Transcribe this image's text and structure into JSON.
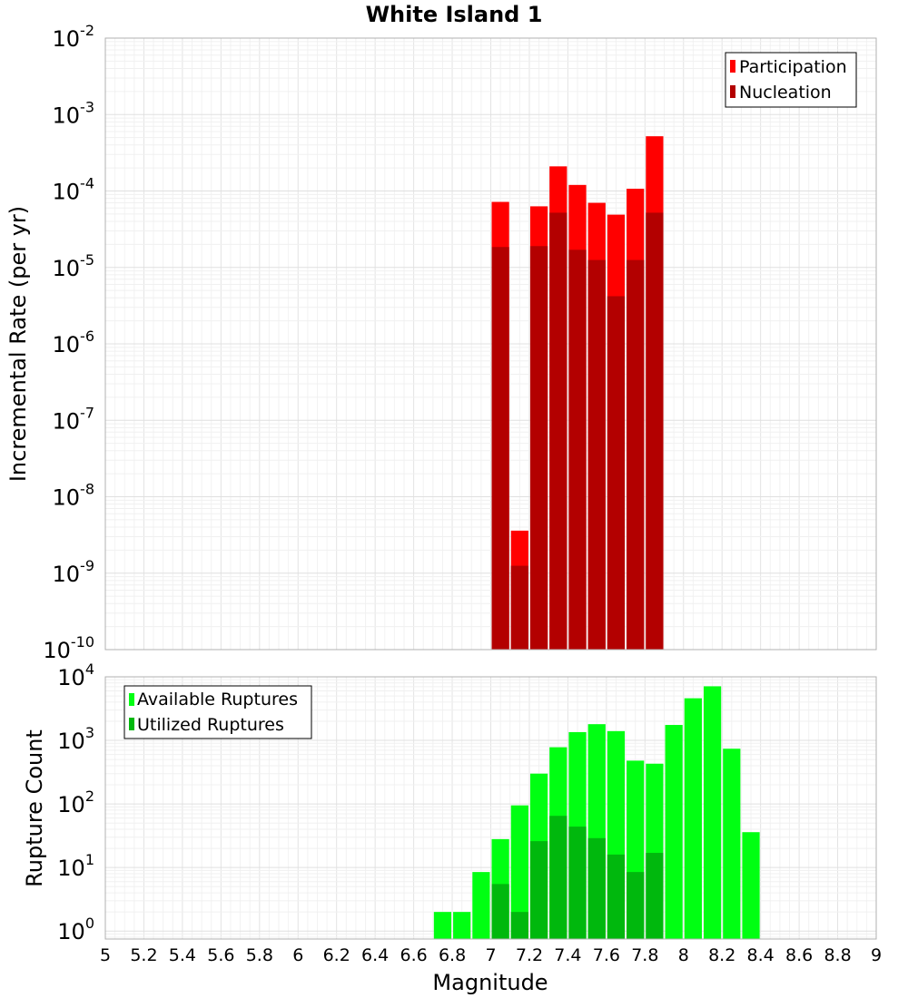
{
  "chart_data": [
    {
      "type": "bar",
      "title": "White Island 1",
      "xlabel": "",
      "ylabel": "Incremental Rate (per yr)",
      "yscale": "log",
      "ylim": [
        1e-10,
        0.01
      ],
      "xlim": [
        5,
        9
      ],
      "grid": true,
      "legend_position": "top-right",
      "x": [
        7.05,
        7.15,
        7.25,
        7.35,
        7.45,
        7.55,
        7.65,
        7.75,
        7.85
      ],
      "series": [
        {
          "name": "Participation",
          "color": "#ff0000",
          "values": [
            7.2e-05,
            3.6e-09,
            6.3e-05,
            0.00021,
            0.00012,
            7e-05,
            4.9e-05,
            0.000107,
            0.00052
          ]
        },
        {
          "name": "Nucleation",
          "color": "#b30000",
          "values": [
            1.85e-05,
            1.25e-09,
            1.9e-05,
            5.2e-05,
            1.7e-05,
            1.25e-05,
            4.2e-06,
            1.25e-05,
            5.2e-05
          ]
        }
      ]
    },
    {
      "type": "bar",
      "title": "",
      "xlabel": "Magnitude",
      "ylabel": "Rupture Count",
      "yscale": "log",
      "ylim": [
        0.75,
        10000
      ],
      "xlim": [
        5,
        9
      ],
      "grid": true,
      "legend_position": "top-left",
      "x": [
        6.75,
        6.85,
        6.95,
        7.05,
        7.15,
        7.25,
        7.35,
        7.45,
        7.55,
        7.65,
        7.75,
        7.85,
        7.95,
        8.05,
        8.15,
        8.25,
        8.35
      ],
      "series": [
        {
          "name": "Available Ruptures",
          "color": "#00ff12",
          "values": [
            2,
            2,
            8.5,
            28,
            95,
            300,
            780,
            1350,
            1800,
            1400,
            480,
            430,
            1750,
            4600,
            7100,
            740,
            36
          ]
        },
        {
          "name": "Utilized Ruptures",
          "color": "#00b80d",
          "values": [
            0,
            0,
            0,
            5.5,
            2,
            26,
            65,
            44,
            29,
            16,
            8.5,
            17,
            0,
            0,
            0,
            0,
            0
          ]
        }
      ]
    }
  ],
  "axes": {
    "x_ticks": [
      "5",
      "5.2",
      "5.4",
      "5.6",
      "5.8",
      "6",
      "6.2",
      "6.4",
      "6.6",
      "6.8",
      "7",
      "7.2",
      "7.4",
      "7.6",
      "7.8",
      "8",
      "8.2",
      "8.4",
      "8.6",
      "8.8",
      "9"
    ],
    "top_y_exponents": [
      "-2",
      "-3",
      "-4",
      "-5",
      "-6",
      "-7",
      "-8",
      "-9",
      "-10"
    ],
    "bottom_y_exponents": [
      "4",
      "3",
      "2",
      "1",
      "0"
    ],
    "y_base": "10"
  }
}
